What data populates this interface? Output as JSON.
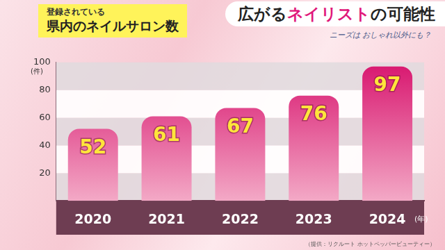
{
  "header": {
    "title": "広がるネイリストの可能性",
    "highlight": "ネイリスト",
    "subtitle": "ニーズは おしゃれ以外にも？"
  },
  "chart_data": {
    "type": "bar",
    "title": "県内のネイルサロン数",
    "subtitle": "登録されている",
    "y_label": "(件)",
    "x_label": "(年)",
    "annotations": [
      "（提供：リクルート ホットペッパービューティー）"
    ],
    "categories": [
      "2020",
      "2021",
      "2022",
      "2023",
      "2024"
    ],
    "values": [
      52,
      61,
      67,
      76,
      97
    ],
    "color": "#d8166f",
    "ylim": [
      0,
      100
    ],
    "yticks": [
      20,
      40,
      60,
      80,
      100
    ],
    "grid": true,
    "data_labels": true
  }
}
